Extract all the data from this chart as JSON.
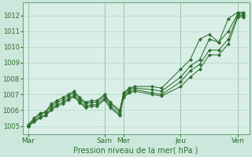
{
  "bg_color": "#cce8dc",
  "plot_bg_color": "#d8eee6",
  "grid_color": "#b0d8c8",
  "line_color": "#2d6e2d",
  "marker_color": "#2d6e2d",
  "xlabel": "Pression niveau de la mer( hPa )",
  "ylim": [
    1004.5,
    1012.8
  ],
  "yticks": [
    1005,
    1006,
    1007,
    1008,
    1009,
    1010,
    1011,
    1012
  ],
  "day_labels": [
    "Mar",
    "Sam",
    "Mer",
    "Jeu",
    "Ven"
  ],
  "day_x": [
    0,
    4,
    5,
    8,
    11
  ],
  "series": [
    {
      "x": [
        0,
        0.3,
        0.6,
        0.9,
        1.2,
        1.5,
        1.8,
        2.1,
        2.4,
        2.7,
        3.0,
        3.3,
        3.6,
        4.0,
        4.3,
        4.8,
        5.0,
        5.3,
        5.6,
        6.5,
        7.0,
        8.0,
        8.5,
        9.0,
        9.5,
        10.0,
        10.5,
        11.0,
        11.3
      ],
      "y": [
        1005.1,
        1005.5,
        1005.8,
        1005.9,
        1006.4,
        1006.6,
        1006.8,
        1007.0,
        1007.2,
        1006.8,
        1006.5,
        1006.6,
        1006.6,
        1007.0,
        1006.5,
        1006.0,
        1007.1,
        1007.4,
        1007.5,
        1007.5,
        1007.4,
        1008.6,
        1009.2,
        1010.5,
        1010.8,
        1010.3,
        1011.8,
        1012.2,
        1012.2
      ]
    },
    {
      "x": [
        0,
        0.3,
        0.6,
        0.9,
        1.2,
        1.5,
        1.8,
        2.1,
        2.4,
        2.7,
        3.0,
        3.3,
        3.6,
        4.0,
        4.3,
        4.8,
        5.0,
        5.3,
        5.6,
        6.5,
        7.0,
        8.0,
        8.5,
        9.0,
        9.5,
        10.0,
        10.5,
        11.0,
        11.3
      ],
      "y": [
        1005.05,
        1005.4,
        1005.7,
        1005.85,
        1006.25,
        1006.5,
        1006.65,
        1006.9,
        1007.1,
        1006.7,
        1006.4,
        1006.5,
        1006.5,
        1006.9,
        1006.4,
        1005.9,
        1007.0,
        1007.35,
        1007.4,
        1007.3,
        1007.2,
        1008.1,
        1008.8,
        1009.2,
        1010.5,
        1010.3,
        1011.0,
        1012.1,
        1012.1
      ]
    },
    {
      "x": [
        0,
        0.3,
        0.6,
        0.9,
        1.2,
        1.5,
        1.8,
        2.1,
        2.4,
        2.7,
        3.0,
        3.3,
        3.6,
        4.0,
        4.3,
        4.8,
        5.0,
        5.3,
        5.6,
        6.5,
        7.0,
        8.0,
        8.5,
        9.0,
        9.5,
        10.0,
        10.5,
        11.0,
        11.3
      ],
      "y": [
        1005.0,
        1005.3,
        1005.55,
        1005.7,
        1006.1,
        1006.35,
        1006.5,
        1006.75,
        1006.95,
        1006.55,
        1006.25,
        1006.35,
        1006.35,
        1006.75,
        1006.25,
        1005.75,
        1006.9,
        1007.2,
        1007.3,
        1007.1,
        1007.0,
        1007.8,
        1008.5,
        1008.9,
        1009.8,
        1009.8,
        1010.5,
        1012.0,
        1012.0
      ]
    },
    {
      "x": [
        0,
        0.3,
        0.6,
        0.9,
        1.2,
        1.5,
        1.8,
        2.1,
        2.4,
        2.7,
        3.0,
        3.3,
        3.6,
        4.0,
        4.3,
        4.8,
        5.0,
        5.3,
        5.6,
        6.5,
        7.0,
        8.0,
        8.5,
        9.0,
        9.5,
        10.0,
        10.5,
        11.0,
        11.3
      ],
      "y": [
        1005.0,
        1005.25,
        1005.5,
        1005.65,
        1006.0,
        1006.25,
        1006.4,
        1006.65,
        1006.85,
        1006.45,
        1006.15,
        1006.25,
        1006.25,
        1006.65,
        1006.15,
        1005.65,
        1006.8,
        1007.1,
        1007.2,
        1007.0,
        1006.9,
        1007.5,
        1008.1,
        1008.6,
        1009.5,
        1009.5,
        1010.2,
        1011.9,
        1011.9
      ]
    }
  ]
}
